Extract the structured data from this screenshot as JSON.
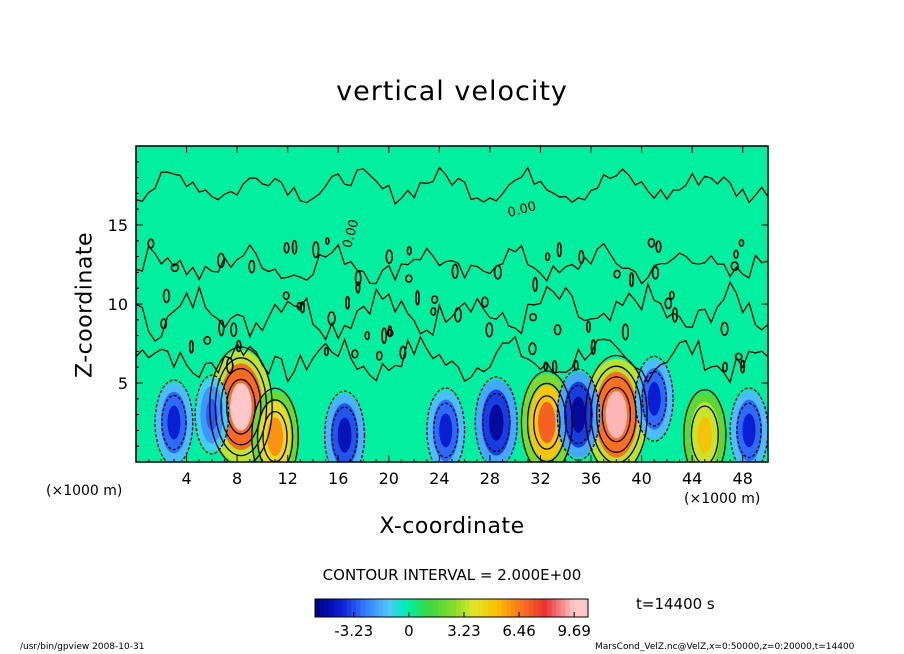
{
  "chart_data": {
    "type": "heatmap",
    "title": "vertical velocity",
    "xlabel": "X-coordinate",
    "ylabel": "Z-coordinate",
    "x_unit_left": "(×1000 m)",
    "x_unit_right": "(×1000 m)",
    "x_ticks": [
      "4",
      "8",
      "12",
      "16",
      "20",
      "24",
      "28",
      "32",
      "36",
      "40",
      "44",
      "48"
    ],
    "x_tick_values": [
      4,
      8,
      12,
      16,
      20,
      24,
      28,
      32,
      36,
      40,
      44,
      48
    ],
    "y_ticks": [
      "5",
      "10",
      "15"
    ],
    "y_tick_values": [
      5,
      10,
      15
    ],
    "xlim": [
      0,
      50
    ],
    "ylim": [
      0,
      20
    ],
    "contour_interval_label": "CONTOUR INTERVAL = 2.000E+00",
    "contour_level_labels": [
      "0.00",
      "0.00"
    ],
    "colorbar": {
      "tick_labels": [
        "-3.23",
        "0",
        "3.23",
        "6.46",
        "9.69"
      ],
      "tick_values": [
        -3.23,
        0,
        3.23,
        6.46,
        9.69
      ],
      "range": [
        -5.5,
        10.5
      ]
    },
    "time_label": "t=14400 s",
    "features": [
      {
        "x": 8.3,
        "z": 3.5,
        "w": 9.7
      },
      {
        "x": 11.0,
        "z": 1.6,
        "w": 6.0
      },
      {
        "x": 32.5,
        "z": 2.5,
        "w": 7.0
      },
      {
        "x": 38.0,
        "z": 3.0,
        "w": 9.5
      },
      {
        "x": 45.0,
        "z": 1.7,
        "w": 5.0
      },
      {
        "x": 3.0,
        "z": 2.5,
        "w": -4.0
      },
      {
        "x": 6.0,
        "z": 3.0,
        "w": -3.0
      },
      {
        "x": 16.5,
        "z": 1.7,
        "w": -4.5
      },
      {
        "x": 24.5,
        "z": 2.0,
        "w": -4.0
      },
      {
        "x": 28.5,
        "z": 2.5,
        "w": -5.0
      },
      {
        "x": 35.0,
        "z": 3.0,
        "w": -5.0
      },
      {
        "x": 41.0,
        "z": 4.0,
        "w": -4.0
      },
      {
        "x": 48.5,
        "z": 2.0,
        "w": -4.0
      }
    ]
  },
  "footer": {
    "left": "/usr/bin/gpview  2008-10-31",
    "right": "MarsCond_VelZ.nc@VelZ,x=0:50000,z=0:20000,t=14400"
  }
}
